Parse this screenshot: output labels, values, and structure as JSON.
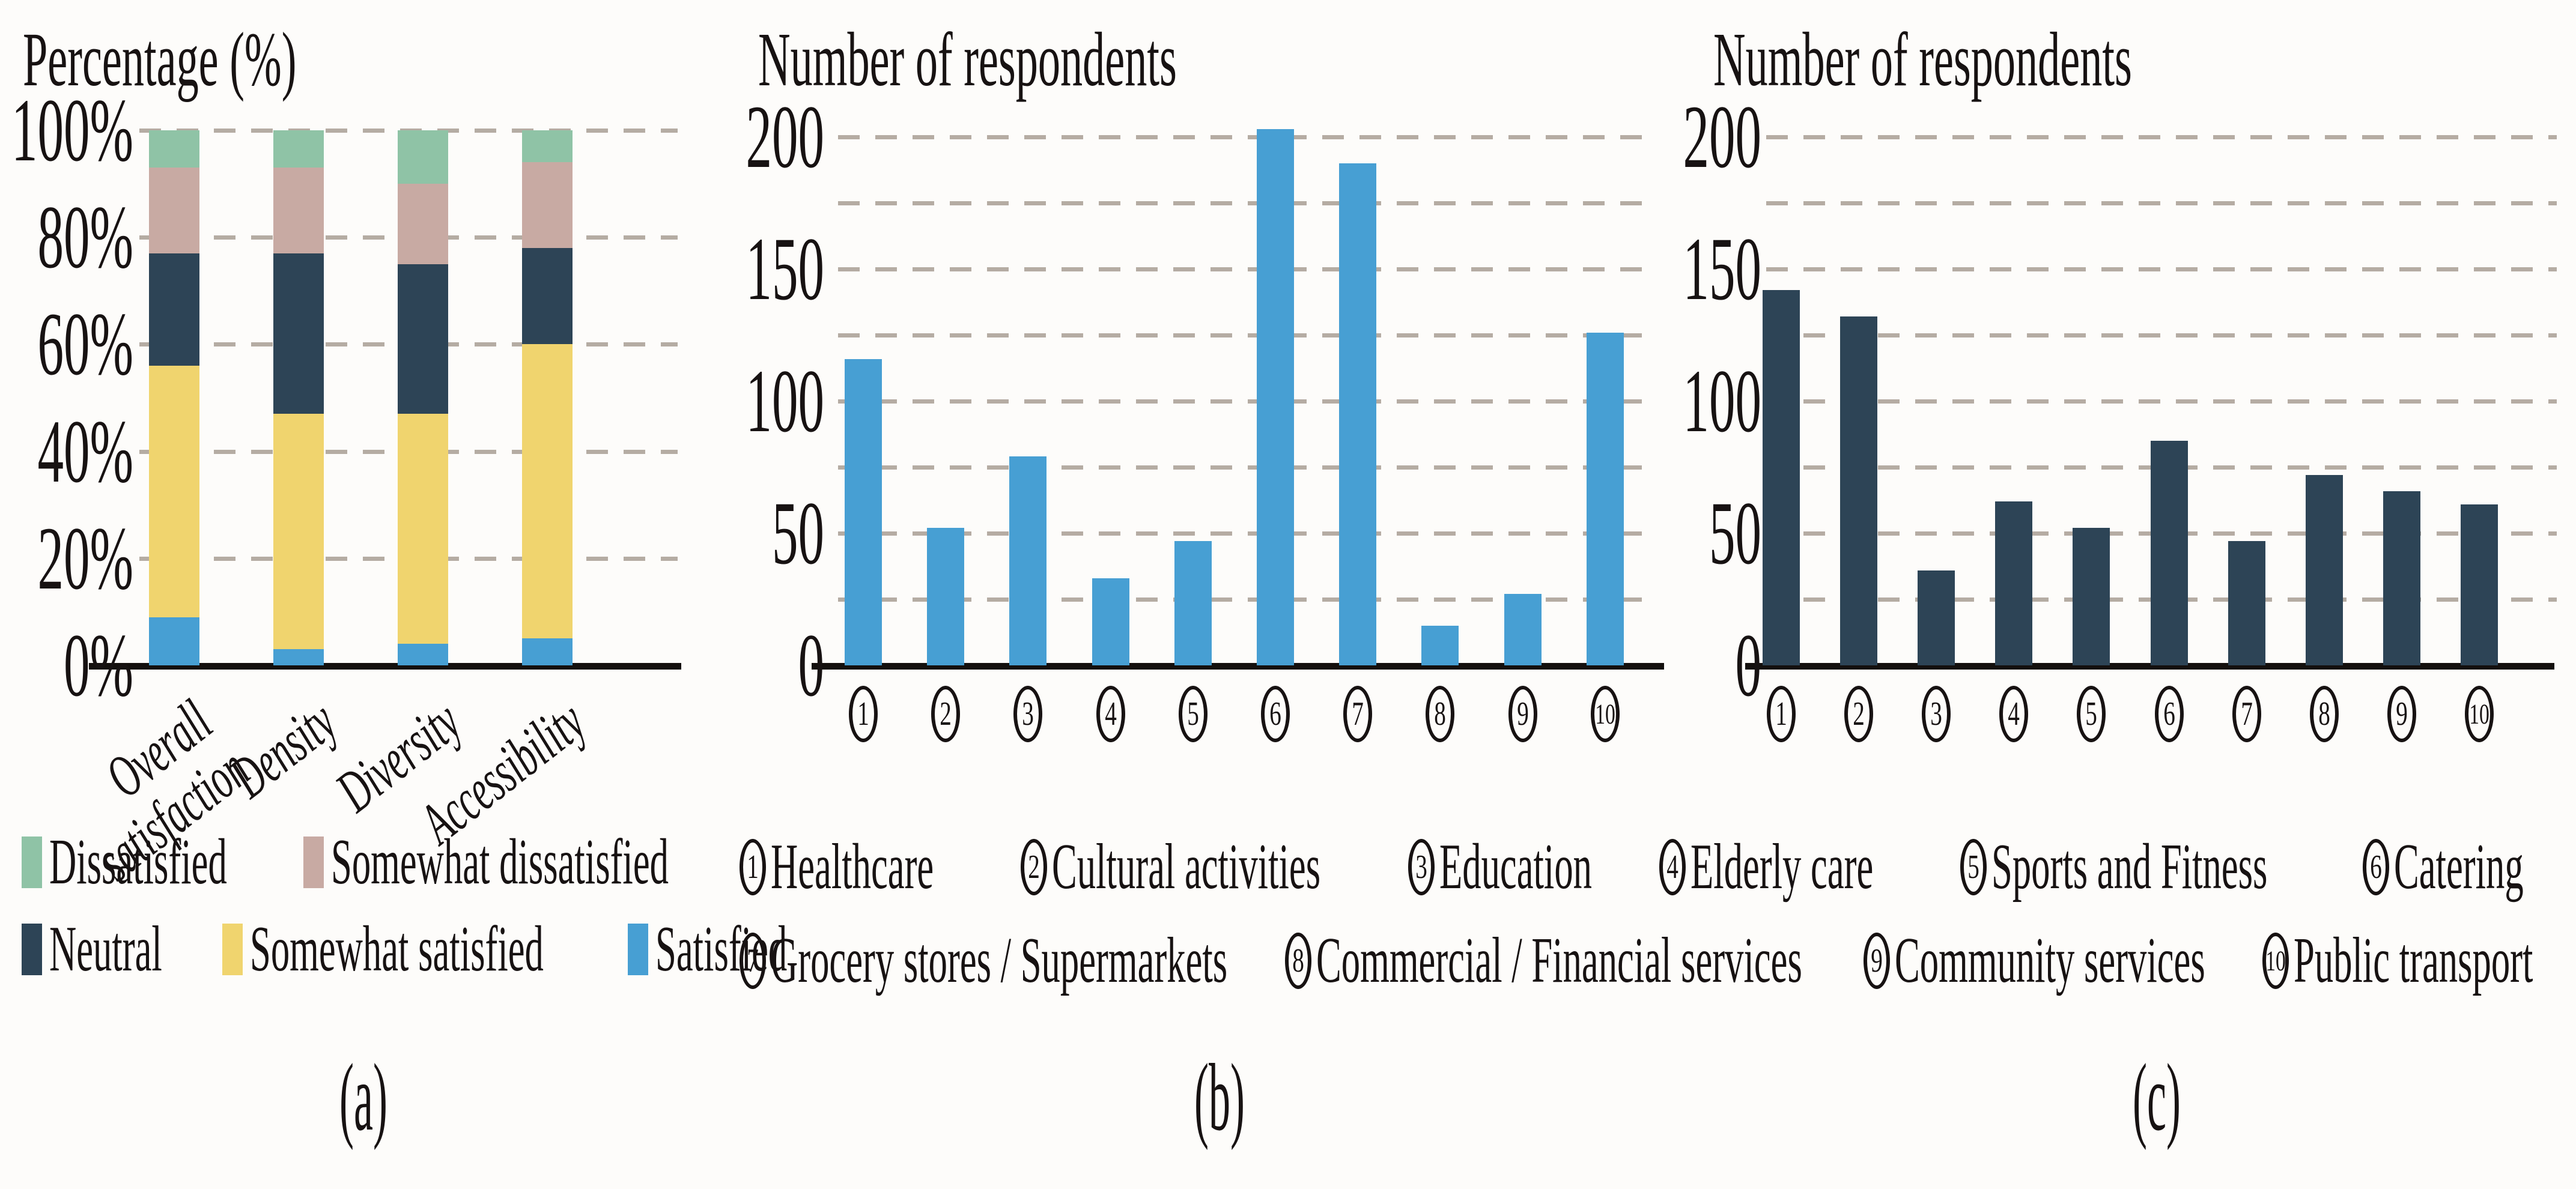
{
  "panel_a": {
    "axis_title": "Percentage (%)",
    "y_ticks": [
      "0%",
      "20%",
      "40%",
      "60%",
      "80%",
      "100%"
    ],
    "categories_display": [
      "Overall\nsatisfaction",
      "Density",
      "Diversity",
      "Accessibility"
    ],
    "caption": "(a)",
    "legend_rows": [
      [
        {
          "label": "Dissatisfied",
          "color": "#8fc3a6"
        },
        {
          "label": "Somewhat dissatisfied",
          "color": "#c8aaa3"
        }
      ],
      [
        {
          "label": "Neutral",
          "color": "#2d4456"
        },
        {
          "label": "Somewhat satisfied",
          "color": "#f0d46e"
        },
        {
          "label": "Satisfied",
          "color": "#479fd3"
        }
      ]
    ]
  },
  "panel_b": {
    "axis_title": "Number of respondents",
    "y_ticks": [
      "0",
      "50",
      "100",
      "150",
      "200"
    ],
    "x_ticks": [
      "1",
      "2",
      "3",
      "4",
      "5",
      "6",
      "7",
      "8",
      "9",
      "10"
    ],
    "caption": "(b)"
  },
  "panel_c": {
    "axis_title": "Number of respondents",
    "y_ticks": [
      "0",
      "50",
      "100",
      "150",
      "200"
    ],
    "x_ticks": [
      "1",
      "2",
      "3",
      "4",
      "5",
      "6",
      "7",
      "8",
      "9",
      "10"
    ],
    "caption": "(c)"
  },
  "services_legend": {
    "rows": [
      [
        {
          "num": "1",
          "label": "Healthcare"
        },
        {
          "num": "2",
          "label": "Cultural activities"
        },
        {
          "num": "3",
          "label": "Education"
        },
        {
          "num": "4",
          "label": "Elderly care"
        },
        {
          "num": "5",
          "label": "Sports and Fitness"
        },
        {
          "num": "6",
          "label": "Catering"
        }
      ],
      [
        {
          "num": "7",
          "label": "Grocery stores / Supermarkets"
        },
        {
          "num": "8",
          "label": "Commercial / Financial services"
        },
        {
          "num": "9",
          "label": "Community services"
        },
        {
          "num": "10",
          "label": "Public transport"
        }
      ]
    ]
  },
  "chart_data": [
    {
      "id": "a",
      "type": "stacked-bar",
      "ylabel": "Percentage (%)",
      "ylim": [
        0,
        100
      ],
      "ytick_values": [
        0,
        20,
        40,
        60,
        80,
        100
      ],
      "grid": "dashed-horizontal",
      "legend_position": "below",
      "categories": [
        "Overall satisfaction",
        "Density",
        "Diversity",
        "Accessibility"
      ],
      "series": [
        {
          "name": "Satisfied",
          "color": "#479fd3",
          "values": [
            9,
            3,
            4,
            5
          ]
        },
        {
          "name": "Somewhat satisfied",
          "color": "#f0d46e",
          "values": [
            47,
            44,
            43,
            55
          ]
        },
        {
          "name": "Neutral",
          "color": "#2d4456",
          "values": [
            21,
            30,
            28,
            18
          ]
        },
        {
          "name": "Somewhat dissatisfied",
          "color": "#c8aaa3",
          "values": [
            16,
            16,
            15,
            16
          ]
        },
        {
          "name": "Dissatisfied",
          "color": "#8fc3a6",
          "values": [
            7,
            7,
            10,
            6
          ]
        }
      ]
    },
    {
      "id": "b",
      "type": "bar",
      "ylabel": "Number of respondents",
      "ylim": [
        0,
        220
      ],
      "ytick_values": [
        0,
        50,
        100,
        150,
        200
      ],
      "gridline_step": 25,
      "grid": "dashed-horizontal",
      "bar_color": "#479fd3",
      "category_numbers": [
        1,
        2,
        3,
        4,
        5,
        6,
        7,
        8,
        9,
        10
      ],
      "categories": [
        "Healthcare",
        "Cultural activities",
        "Education",
        "Elderly care",
        "Sports and Fitness",
        "Catering",
        "Grocery stores / Supermarkets",
        "Commercial / Financial services",
        "Community services",
        "Public transport"
      ],
      "values": [
        116,
        52,
        79,
        33,
        47,
        203,
        190,
        15,
        27,
        126
      ]
    },
    {
      "id": "c",
      "type": "bar",
      "ylabel": "Number of respondents",
      "ylim": [
        0,
        220
      ],
      "ytick_values": [
        0,
        50,
        100,
        150,
        200
      ],
      "gridline_step": 25,
      "grid": "dashed-horizontal",
      "bar_color": "#2d4456",
      "category_numbers": [
        1,
        2,
        3,
        4,
        5,
        6,
        7,
        8,
        9,
        10
      ],
      "categories": [
        "Healthcare",
        "Cultural activities",
        "Education",
        "Elderly care",
        "Sports and Fitness",
        "Catering",
        "Grocery stores / Supermarkets",
        "Commercial / Financial services",
        "Community services",
        "Public transport"
      ],
      "values": [
        142,
        132,
        36,
        62,
        52,
        85,
        47,
        72,
        66,
        61
      ]
    }
  ],
  "colors": {
    "bar_blue": "#479fd3",
    "bar_navy": "#2d4456",
    "green": "#8fc3a6",
    "tan": "#c8aaa3",
    "yellow": "#f0d46e",
    "gridline": "#b5aca3",
    "axis": "#14100e",
    "text": "#171212",
    "background": "#fdfcfa"
  }
}
